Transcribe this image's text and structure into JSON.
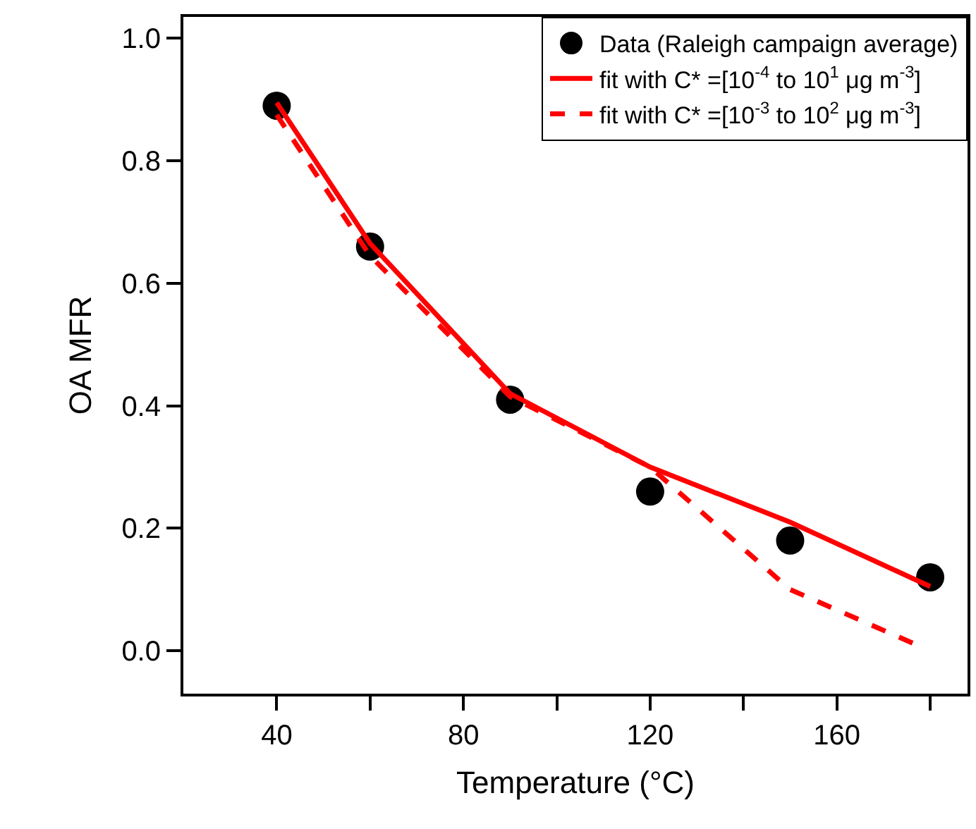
{
  "chart_data": {
    "type": "line",
    "xlabel": "Temperature (°C)",
    "ylabel": "OA MFR",
    "xlim": [
      20,
      188
    ],
    "ylim": [
      -0.07,
      1.035
    ],
    "xticks": [
      40,
      {
        "value": 60,
        "label": null
      },
      80,
      {
        "value": 100,
        "label": null
      },
      120,
      {
        "value": 140,
        "label": null
      },
      160,
      {
        "value": 180,
        "label": null
      }
    ],
    "yticks": [
      {
        "value": 0,
        "label": "0.0"
      },
      0.2,
      0.4,
      0.6,
      0.8,
      {
        "value": 1,
        "label": "1.0"
      }
    ],
    "legend": "top right",
    "series": [
      {
        "name": "Data (Raleigh campaign average)",
        "type": "scatter",
        "marker": "circle",
        "color": "#000000",
        "x": [
          40,
          60,
          90,
          120,
          150,
          180
        ],
        "values": [
          0.89,
          0.66,
          0.41,
          0.26,
          0.18,
          0.12
        ]
      },
      {
        "name": "fit with C* =[10$^{-4}$ to 10$^{1}$ μg m$^{-3}$]",
        "line_style": "solid",
        "color": "#ff0000",
        "x": [
          40,
          60,
          90,
          120,
          150,
          180
        ],
        "values": [
          0.895,
          0.665,
          0.42,
          0.3,
          0.21,
          0.105
        ]
      },
      {
        "name": "fit with C* =[10$^{-3}$ to 10$^{2}$ μg m$^{-3}$]",
        "line_style": "dashed",
        "color": "#ff0000",
        "x": [
          40,
          60,
          90,
          120,
          150,
          177
        ],
        "values": [
          0.875,
          0.645,
          0.415,
          0.3,
          0.1,
          0.01
        ]
      }
    ]
  }
}
